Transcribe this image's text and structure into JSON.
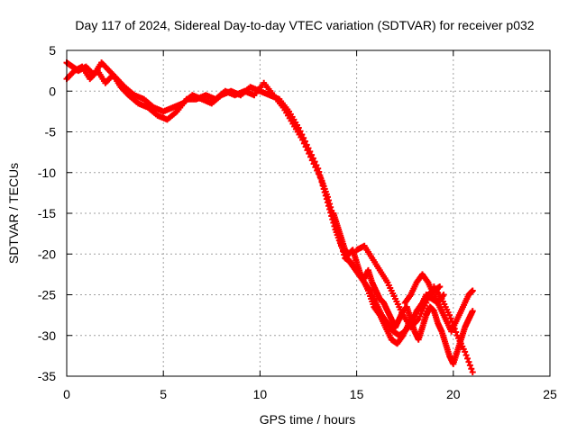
{
  "chart_data": {
    "type": "scatter",
    "title": "Day 117 of 2024, Sidereal Day-to-day VTEC variation (SDTVAR) for receiver p032",
    "xlabel": "GPS time / hours",
    "ylabel": "SDTVAR / TECUs",
    "xlim": [
      0,
      25
    ],
    "ylim": [
      -35,
      5
    ],
    "xticks": [
      0,
      5,
      10,
      15,
      20,
      25
    ],
    "yticks": [
      5,
      0,
      -5,
      -10,
      -15,
      -20,
      -25,
      -30,
      -35
    ],
    "grid": true,
    "marker": "plus",
    "color": "#ff0000",
    "series": [
      {
        "x": [
          0.0,
          0.3,
          0.6,
          1.0,
          1.4,
          1.8,
          2.2,
          2.6,
          3.0,
          3.5,
          4.0,
          4.5,
          5.0,
          5.5,
          6.0,
          6.5,
          7.0,
          7.5,
          8.0,
          8.5,
          9.0,
          9.5,
          10.0,
          10.5,
          11.0,
          11.5,
          12.0,
          12.5,
          13.0,
          13.3,
          13.6,
          13.9,
          14.2,
          14.5,
          14.8,
          15.1,
          15.4,
          15.7,
          16.0,
          16.3,
          16.6,
          16.9,
          17.2,
          17.5,
          17.8,
          18.1,
          18.4,
          18.7,
          19.0,
          19.3
        ],
        "y": [
          3.5,
          3.0,
          2.5,
          3.0,
          2.0,
          3.5,
          2.5,
          1.5,
          0.5,
          -0.5,
          -1.0,
          -2.0,
          -2.5,
          -2.0,
          -1.5,
          -0.5,
          -1.0,
          -1.5,
          -0.5,
          0.0,
          -0.5,
          0.5,
          0.0,
          -0.5,
          -1.0,
          -2.5,
          -4.5,
          -7.0,
          -9.5,
          -12.0,
          -14.5,
          -17.0,
          -19.0,
          -20.5,
          -21.5,
          -22.5,
          -23.5,
          -24.5,
          -26.0,
          -27.5,
          -28.5,
          -29.5,
          -30.0,
          -29.5,
          -28.5,
          -27.0,
          -26.0,
          -25.0,
          -24.5,
          -24.0
        ]
      },
      {
        "x": [
          0.0,
          0.4,
          0.8,
          1.2,
          1.6,
          2.0,
          2.4,
          2.8,
          3.2,
          3.7,
          4.2,
          4.7,
          5.2,
          5.7,
          6.2,
          6.7,
          7.2,
          7.7,
          8.2,
          8.7,
          9.2,
          9.7,
          10.2,
          10.7,
          11.2,
          11.7,
          12.2,
          12.7,
          13.2,
          13.5,
          13.8,
          14.1,
          14.4,
          14.7,
          15.0,
          15.3,
          15.6,
          15.9,
          16.2,
          16.5,
          16.8,
          17.1,
          17.4,
          17.7,
          18.0,
          18.3,
          18.6,
          18.9,
          19.2,
          19.5
        ],
        "y": [
          1.5,
          2.5,
          3.0,
          1.5,
          2.5,
          1.0,
          2.0,
          0.5,
          -0.5,
          -1.5,
          -2.0,
          -3.0,
          -3.5,
          -2.5,
          -1.0,
          -1.0,
          -0.5,
          -1.0,
          0.0,
          -0.5,
          0.0,
          -0.5,
          1.0,
          -0.5,
          -2.0,
          -4.0,
          -6.0,
          -8.5,
          -11.0,
          -13.0,
          -15.5,
          -18.0,
          -20.5,
          -21.0,
          -22.0,
          -23.0,
          -24.5,
          -26.5,
          -27.5,
          -29.0,
          -30.5,
          -31.0,
          -30.0,
          -28.5,
          -27.5,
          -26.5,
          -25.0,
          -25.5,
          -26.0,
          -25.0
        ]
      },
      {
        "x": [
          13.8,
          14.0,
          14.2,
          14.4,
          14.6,
          14.8,
          15.0,
          15.2,
          15.4,
          15.6,
          15.8,
          16.0,
          16.2,
          16.4,
          16.6,
          16.8,
          17.0,
          17.2,
          17.4,
          17.6,
          17.8,
          18.0,
          18.2,
          18.4,
          18.6,
          18.8,
          19.0,
          19.2,
          19.4,
          19.6,
          19.8,
          20.0,
          20.2,
          20.4,
          20.6,
          20.8,
          21.0
        ],
        "y": [
          -15.0,
          -16.5,
          -18.0,
          -19.5,
          -20.0,
          -19.5,
          -21.0,
          -22.5,
          -23.0,
          -22.0,
          -23.5,
          -24.5,
          -25.5,
          -26.0,
          -27.0,
          -28.0,
          -29.0,
          -28.0,
          -27.0,
          -26.5,
          -28.0,
          -29.5,
          -30.5,
          -29.0,
          -27.5,
          -26.5,
          -27.0,
          -28.5,
          -29.5,
          -31.0,
          -32.5,
          -33.5,
          -32.0,
          -30.5,
          -29.0,
          -28.0,
          -27.0
        ]
      },
      {
        "x": [
          15.0,
          15.4,
          15.8,
          16.2,
          16.6,
          17.0,
          17.4,
          17.8,
          18.2,
          18.6,
          19.0,
          19.4,
          19.8,
          20.2,
          20.6,
          21.0
        ],
        "y": [
          -19.5,
          -19.0,
          -20.5,
          -22.0,
          -23.5,
          -25.5,
          -27.5,
          -29.0,
          -28.0,
          -26.0,
          -24.0,
          -25.5,
          -27.5,
          -30.0,
          -32.0,
          -34.5
        ]
      },
      {
        "x": [
          17.5,
          17.8,
          18.1,
          18.4,
          18.7,
          19.0,
          19.3,
          19.6,
          19.9,
          20.2,
          20.5,
          20.8,
          21.0
        ],
        "y": [
          -26.0,
          -25.0,
          -23.5,
          -22.5,
          -23.5,
          -25.0,
          -26.5,
          -28.0,
          -29.5,
          -28.0,
          -26.5,
          -25.0,
          -24.5
        ]
      }
    ]
  }
}
